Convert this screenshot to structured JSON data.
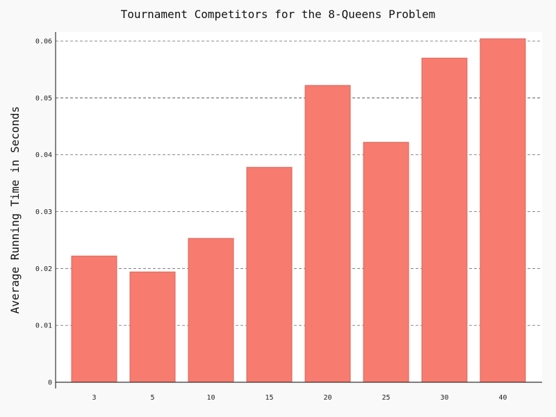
{
  "chart_data": {
    "type": "bar",
    "title": "Tournament Competitors for the 8-Queens Problem",
    "xlabel": "",
    "ylabel": "Average Running Time in Seconds",
    "categories": [
      "3",
      "5",
      "10",
      "15",
      "20",
      "25",
      "30",
      "40"
    ],
    "values": [
      0.0222,
      0.0194,
      0.0253,
      0.0378,
      0.0522,
      0.0422,
      0.057,
      0.0604
    ],
    "ylim": [
      0,
      0.0616
    ],
    "yticks": [
      0,
      0.01,
      0.02,
      0.03,
      0.04,
      0.05,
      0.06
    ],
    "ytick_labels": [
      "0",
      "0.01",
      "0.02",
      "0.03",
      "0.04",
      "0.05",
      "0.06"
    ],
    "grid": true,
    "bar_color": "#f77b6f",
    "bar_edge_color": "#d9675c",
    "grid_color": "#777777",
    "background": "#f9f9f9",
    "plot_background": "#ffffff"
  }
}
